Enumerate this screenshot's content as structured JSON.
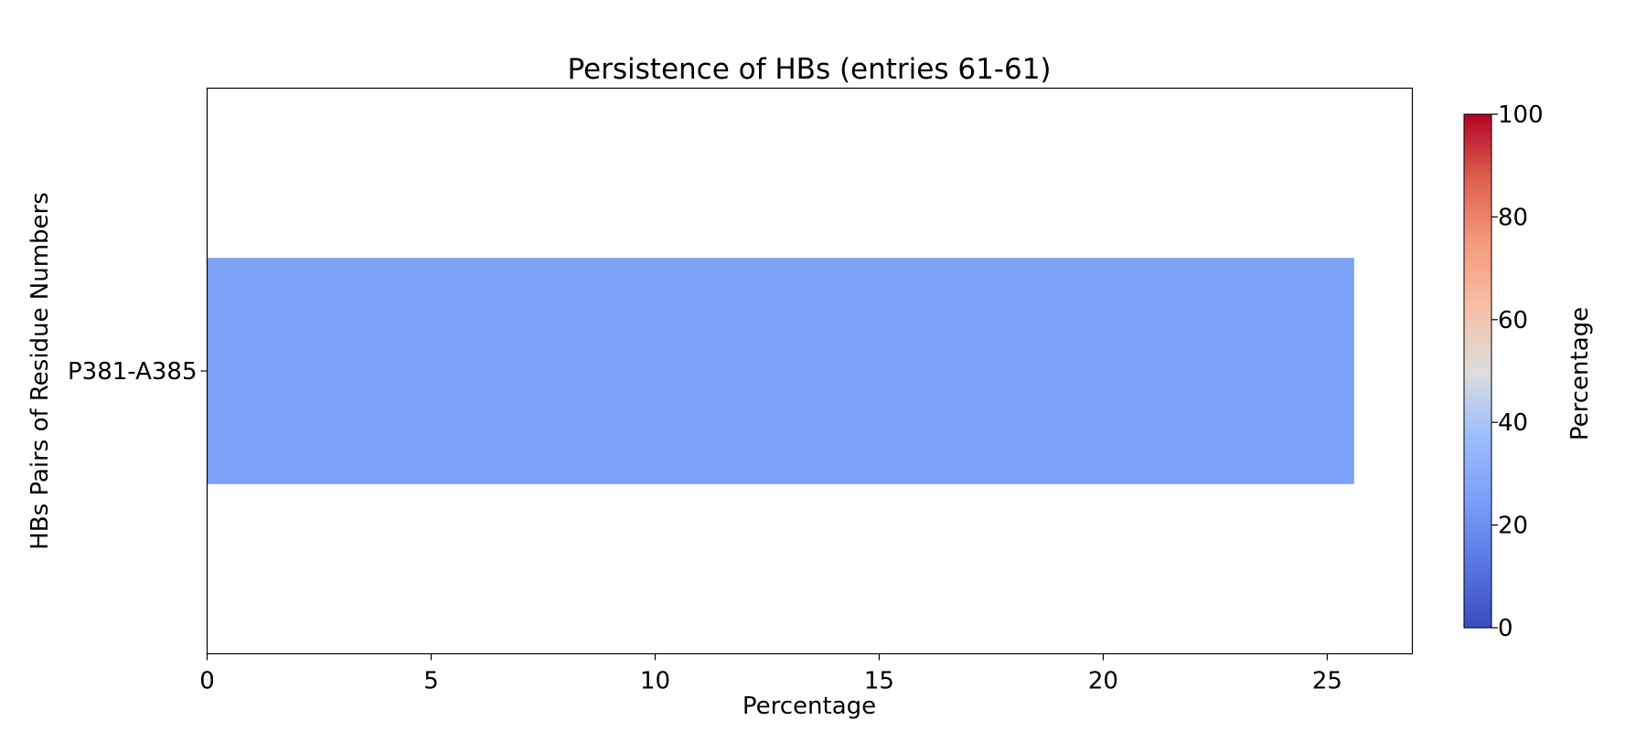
{
  "chart_data": {
    "type": "bar",
    "orientation": "horizontal",
    "title": "Persistence of HBs (entries 61-61)",
    "xlabel": "Percentage",
    "ylabel": "HBs Pairs of Residue Numbers",
    "categories": [
      "P381-A385"
    ],
    "values": [
      25.6
    ],
    "xlim": [
      0,
      26.9
    ],
    "xticks": [
      "0",
      "5",
      "10",
      "15",
      "20",
      "25"
    ],
    "grid": false,
    "colorbar": {
      "label": "Percentage",
      "range": [
        0,
        100
      ],
      "ticks": [
        "0",
        "20",
        "40",
        "60",
        "80",
        "100"
      ],
      "colormap": "coolwarm"
    }
  }
}
